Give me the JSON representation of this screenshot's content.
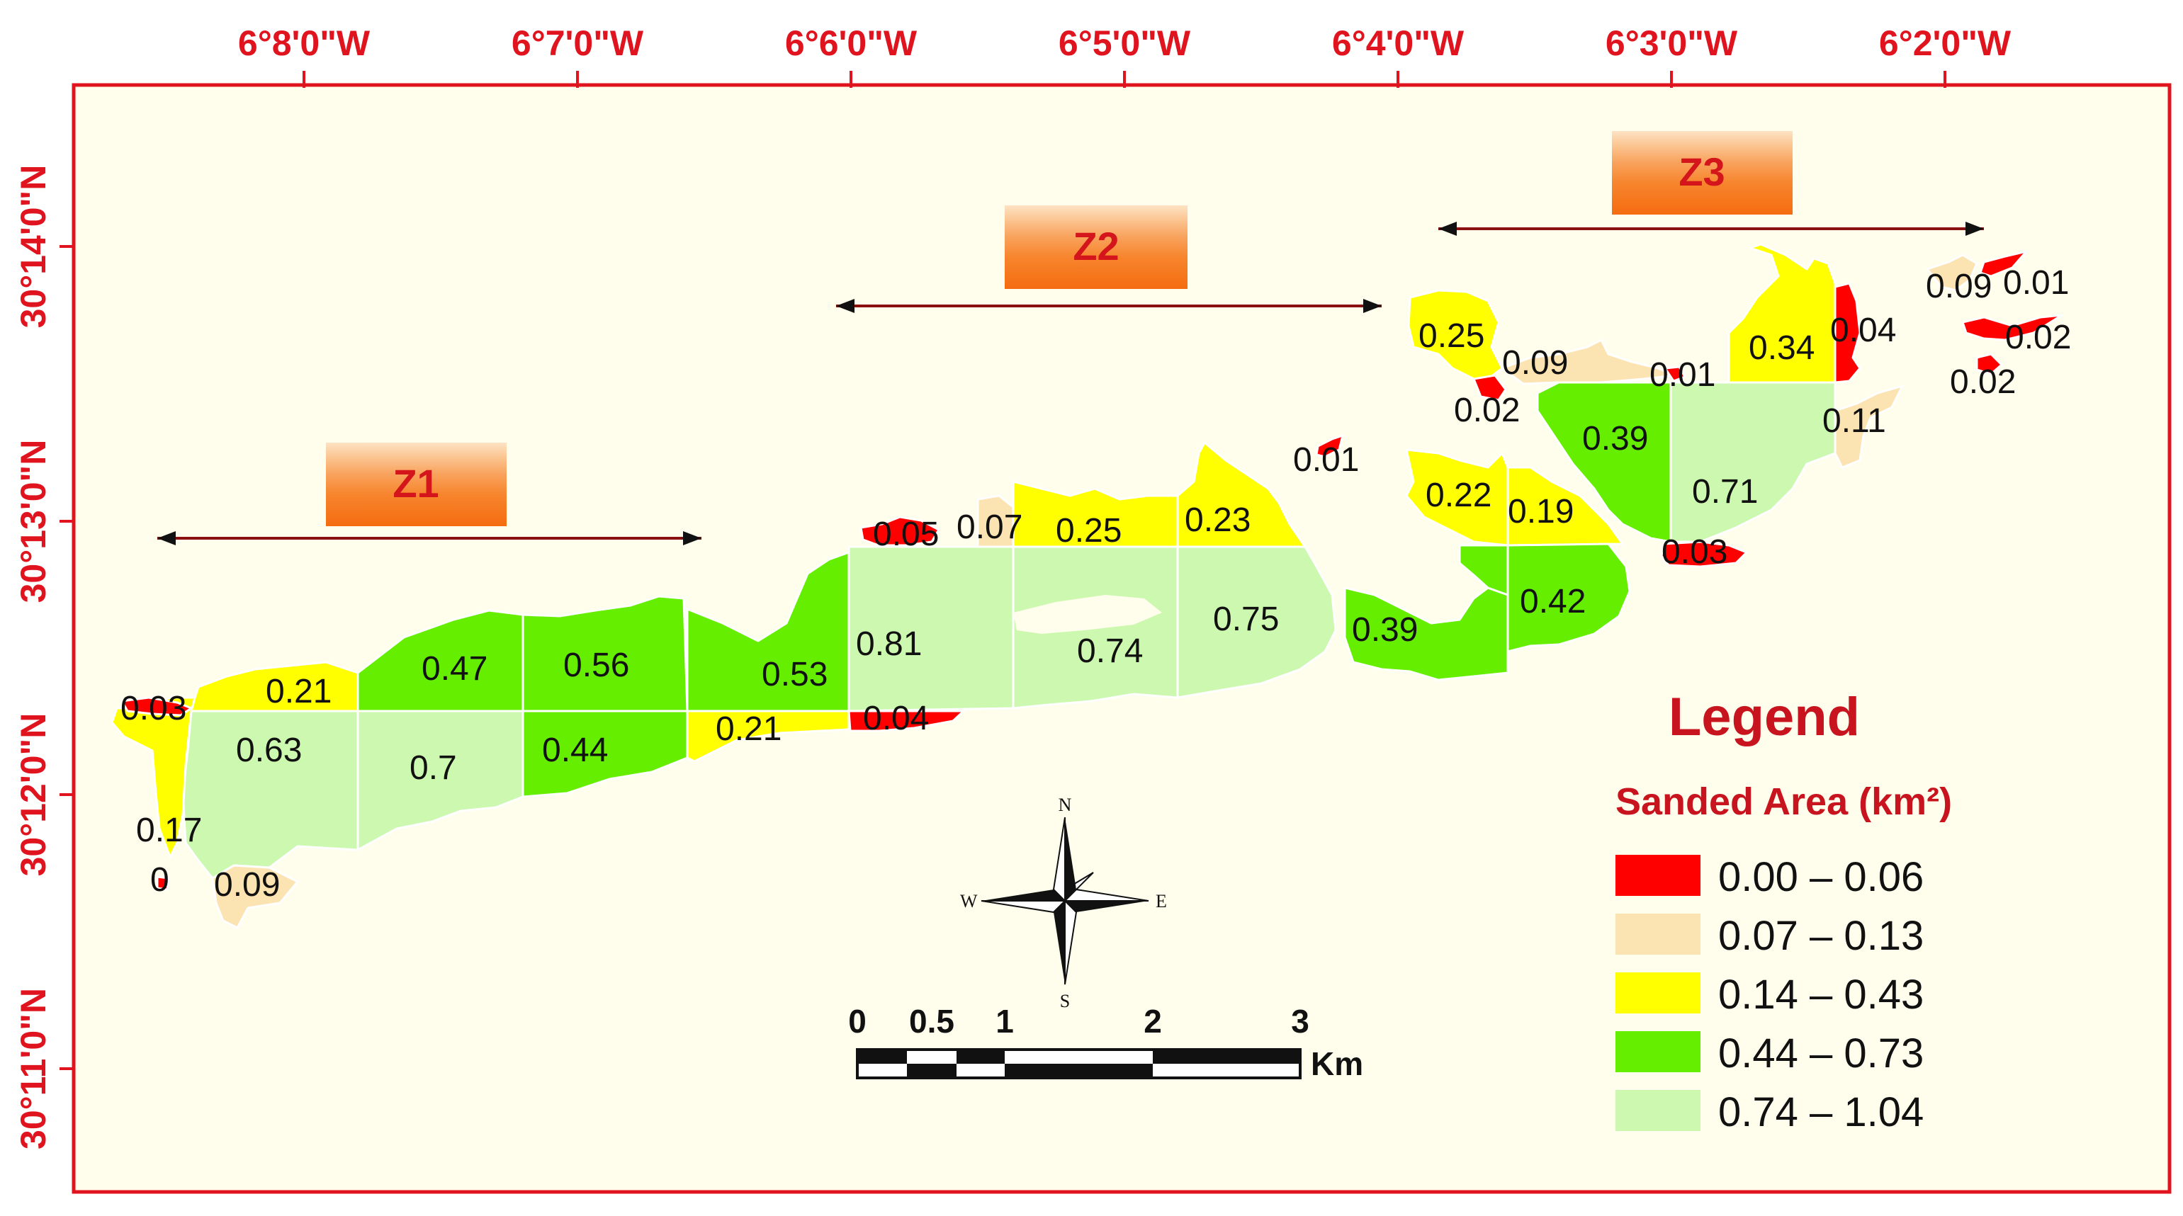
{
  "axes": {
    "longitude_ticks": [
      "6°8'0\"W",
      "6°7'0\"W",
      "6°6'0\"W",
      "6°5'0\"W",
      "6°4'0\"W",
      "6°3'0\"W",
      "6°2'0\"W"
    ],
    "latitude_ticks": [
      "30°14'0\"N",
      "30°13'0\"N",
      "30°12'0\"N",
      "30°11'0\"N"
    ]
  },
  "zones": [
    {
      "label": "Z1"
    },
    {
      "label": "Z2"
    },
    {
      "label": "Z3"
    }
  ],
  "area_labels": [
    "0.03",
    "0.21",
    "0.47",
    "0.56",
    "0.53",
    "0.63",
    "0.7",
    "0.44",
    "0.21",
    "0.17",
    "0",
    "0.09",
    "0.05",
    "0.07",
    "0.25",
    "0.23",
    "0.01",
    "0.81",
    "0.74",
    "0.75",
    "0.39",
    "0.04",
    "0.25",
    "0.09",
    "0.02",
    "0.01",
    "0.34",
    "0.04",
    "0.09",
    "0.01",
    "0.02",
    "0.02",
    "0.11",
    "0.39",
    "0.71",
    "0.22",
    "0.19",
    "0.42",
    "0.03"
  ],
  "legend": {
    "title": "Legend",
    "subtitle": "Sanded Area (km²)",
    "classes": [
      {
        "label": "0.00 – 0.06",
        "color": "#ff0000"
      },
      {
        "label": "0.07 – 0.13",
        "color": "#fce4b2"
      },
      {
        "label": "0.14 – 0.43",
        "color": "#ffff00"
      },
      {
        "label": "0.44 – 0.73",
        "color": "#66ee00"
      },
      {
        "label": "0.74 – 1.04",
        "color": "#cdf8b0"
      }
    ]
  },
  "compass": {
    "n": "N",
    "s": "S",
    "e": "E",
    "w": "W"
  },
  "scale_bar": {
    "ticks": [
      "0",
      "0.5",
      "1",
      "2",
      "3"
    ],
    "unit": "Km"
  },
  "colors": {
    "frame": "#e0141e",
    "background": "#fffdeb",
    "zone_arrow": "#8b1010"
  }
}
